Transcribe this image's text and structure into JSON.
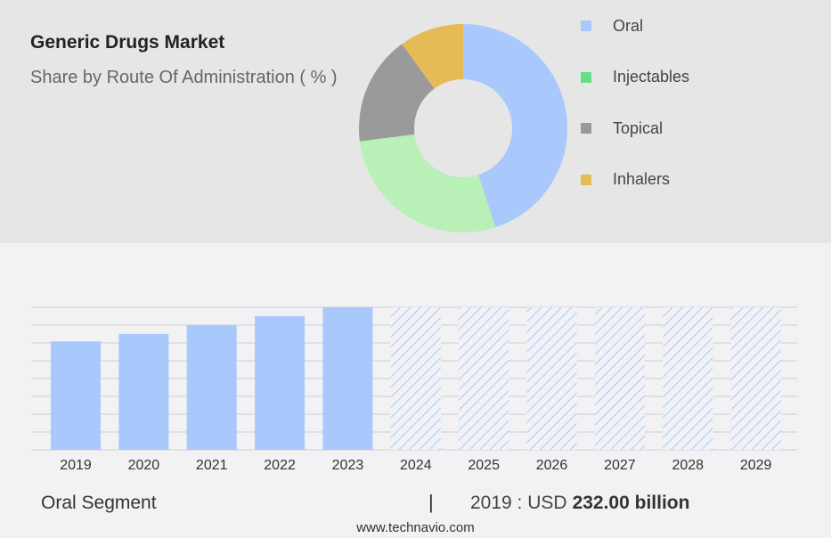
{
  "header": {
    "title": "Generic Drugs Market",
    "subtitle": "Share by Route Of Administration ( % )"
  },
  "chart_data": [
    {
      "type": "donut",
      "slices": [
        {
          "name": "Oral",
          "value": 45,
          "color": "#a9c8fb"
        },
        {
          "name": "Injectables",
          "value": 28,
          "color": "#b8f0b8"
        },
        {
          "name": "Topical",
          "value": 17,
          "color": "#9a9a9a"
        },
        {
          "name": "Inhalers",
          "value": 10,
          "color": "#e6bb55"
        }
      ],
      "legend": [
        {
          "name": "Oral",
          "color": "#a9c8fb"
        },
        {
          "name": "Injectables",
          "color": "#66dd88"
        },
        {
          "name": "Topical",
          "color": "#999999"
        },
        {
          "name": "Inhalers",
          "color": "#e6bb55"
        }
      ],
      "legend_position": "right"
    },
    {
      "type": "bar",
      "categories": [
        "2019",
        "2020",
        "2021",
        "2022",
        "2023",
        "2024",
        "2025",
        "2026",
        "2027",
        "2028",
        "2029"
      ],
      "values": [
        232,
        248,
        266,
        286,
        305,
        305,
        305,
        305,
        305,
        305,
        305
      ],
      "forecast_from": "2024",
      "bar_color": "#a9c8fb",
      "grid": true,
      "ylim": [
        0,
        305
      ]
    }
  ],
  "footer": {
    "segment_label": "Oral Segment",
    "divider": "|",
    "year_text": "2019 : USD",
    "value_text": "232.00 billion",
    "source": "www.technavio.com"
  }
}
